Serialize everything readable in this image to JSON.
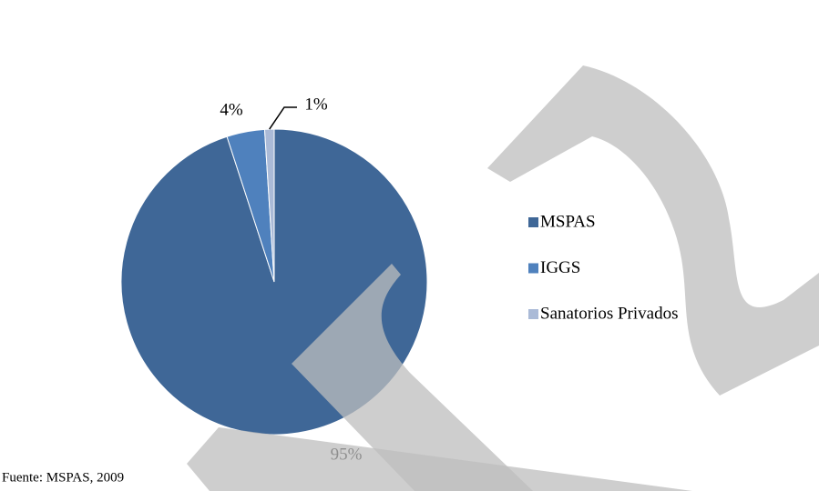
{
  "chart_data": {
    "type": "pie",
    "categories": [
      "MSPAS",
      "IGGS",
      "Sanatorios Privados"
    ],
    "values": [
      95,
      4,
      1
    ],
    "value_labels": [
      "95%",
      "4%",
      "1%"
    ],
    "colors": [
      "#3f6797",
      "#4f81bd",
      "#aabad7"
    ],
    "legend": "right",
    "source": "Fuente: MSPAS, 2009"
  }
}
